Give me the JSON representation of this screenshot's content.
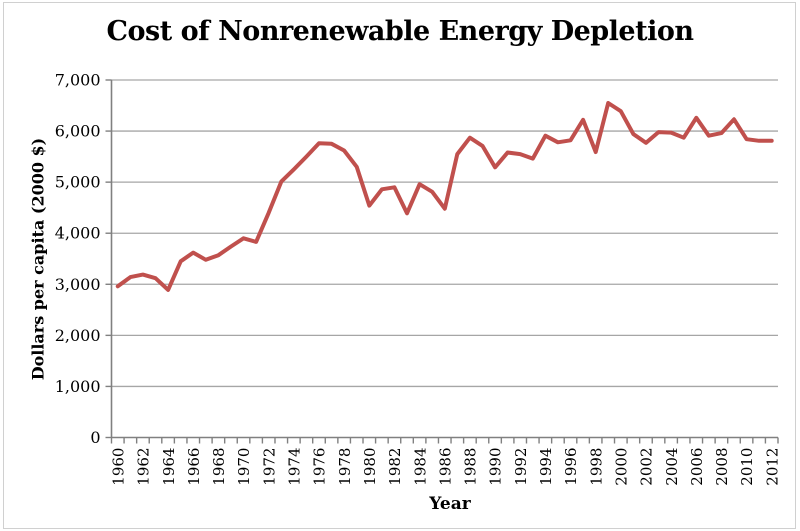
{
  "chart": {
    "title": "Cost of Nonrenewable Energy Depletion",
    "x_axis_title": "Year",
    "y_axis_title": "Dollars per capita (2000 $)"
  },
  "chart_data": {
    "type": "line",
    "title": "Cost of Nonrenewable Energy Depletion",
    "xlabel": "Year",
    "ylabel": "Dollars per capita (2000 $)",
    "x": [
      1960,
      1961,
      1962,
      1963,
      1964,
      1965,
      1966,
      1967,
      1968,
      1969,
      1970,
      1971,
      1972,
      1973,
      1974,
      1975,
      1976,
      1977,
      1978,
      1979,
      1980,
      1981,
      1982,
      1983,
      1984,
      1985,
      1986,
      1987,
      1988,
      1989,
      1990,
      1991,
      1992,
      1993,
      1994,
      1995,
      1996,
      1997,
      1998,
      1999,
      2000,
      2001,
      2002,
      2003,
      2004,
      2005,
      2006,
      2007,
      2008,
      2009,
      2010,
      2011,
      2012
    ],
    "values": [
      2960,
      3140,
      3190,
      3120,
      2890,
      3450,
      3620,
      3480,
      3570,
      3740,
      3900,
      3830,
      4400,
      5010,
      5250,
      5500,
      5760,
      5750,
      5620,
      5300,
      4540,
      4860,
      4900,
      4390,
      4960,
      4810,
      4480,
      5550,
      5870,
      5710,
      5290,
      5580,
      5550,
      5460,
      5910,
      5780,
      5820,
      6220,
      5590,
      6550,
      6390,
      5940,
      5770,
      5980,
      5970,
      5870,
      6260,
      5910,
      5960,
      6230,
      5840,
      5810,
      5810
    ],
    "ylim": [
      0,
      7000
    ],
    "y_tick_step": 1000,
    "y_tick_labels": [
      "0",
      "1,000",
      "2,000",
      "3,000",
      "4,000",
      "5,000",
      "6,000",
      "7,000"
    ],
    "x_tick_labels": [
      "1960",
      "1962",
      "1964",
      "1966",
      "1968",
      "1970",
      "1972",
      "1974",
      "1976",
      "1978",
      "1980",
      "1982",
      "1984",
      "1986",
      "1988",
      "1990",
      "1992",
      "1994",
      "1996",
      "1998",
      "2000",
      "2002",
      "2004",
      "2006",
      "2008",
      "2010",
      "2012"
    ],
    "grid": "horizontal",
    "legend": "none",
    "line_color": "#C0504D",
    "gridline_color": "#A6A6A6",
    "axis_color": "#808080",
    "text_color": "#000000",
    "background": "#FFFFFF",
    "border_color": "#D0D0D0"
  }
}
